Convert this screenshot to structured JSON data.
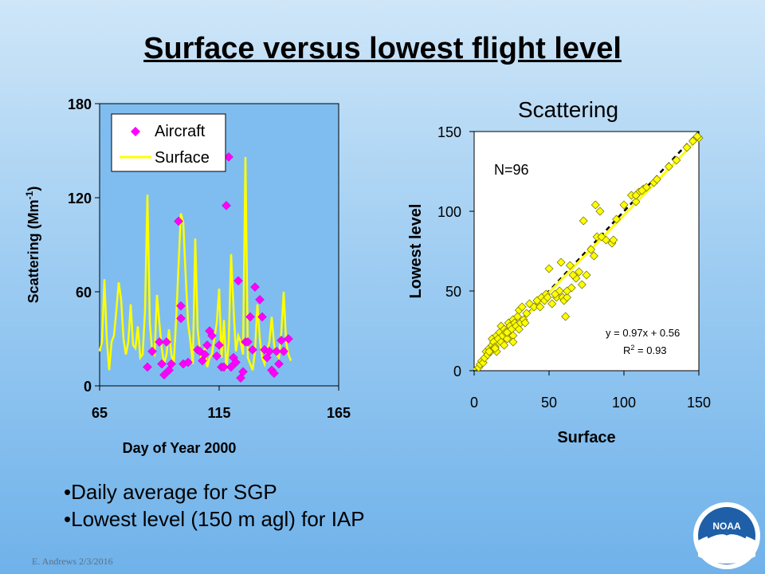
{
  "slide": {
    "title": "Surface versus lowest flight level",
    "bullets": [
      "•Daily average for SGP",
      "•Lowest level (150 m agl) for IAP"
    ],
    "footer": "E. Andrews   2/3/2016",
    "logo_text": "NOAA"
  },
  "chart_data": [
    {
      "type": "line",
      "title": "",
      "xlabel": "Day of Year 2000",
      "ylabel": "Scattering (Mm-1)",
      "xlim": [
        65,
        165
      ],
      "ylim": [
        0,
        180
      ],
      "xticks": [
        65,
        115,
        165
      ],
      "yticks": [
        0,
        60,
        120,
        180
      ],
      "legend": "top-left",
      "series": [
        {
          "name": "Aircraft",
          "kind": "scatter",
          "marker": "diamond",
          "color": "#ff00ff",
          "x": [
            85,
            87,
            90,
            91,
            92,
            93,
            94,
            95,
            98,
            99,
            99,
            100,
            102,
            106,
            107,
            108,
            109,
            110,
            111,
            112,
            114,
            115,
            116,
            117,
            118,
            119,
            120,
            121,
            122,
            123,
            124,
            125,
            126,
            127,
            128,
            129,
            130,
            132,
            133,
            134,
            135,
            136,
            137,
            138,
            139,
            140,
            141,
            142,
            144
          ],
          "y": [
            12,
            22,
            28,
            14,
            7,
            28,
            10,
            14,
            105,
            43,
            51,
            14,
            15,
            23,
            22,
            16,
            20,
            26,
            35,
            32,
            19,
            26,
            12,
            12,
            115,
            146,
            12,
            18,
            15,
            67,
            5,
            9,
            28,
            28,
            44,
            23,
            63,
            55,
            44,
            23,
            18,
            22,
            10,
            8,
            22,
            14,
            29,
            22,
            30
          ]
        },
        {
          "name": "Surface",
          "kind": "line",
          "color": "#ffff00",
          "x": [
            65,
            66,
            67,
            68,
            69,
            70,
            71,
            72,
            73,
            74,
            75,
            76,
            77,
            78,
            79,
            80,
            81,
            82,
            83,
            84,
            85,
            86,
            87,
            88,
            89,
            90,
            91,
            92,
            93,
            94,
            95,
            96,
            97,
            98,
            99,
            100,
            101,
            102,
            103,
            104,
            105,
            106,
            107,
            108,
            109,
            110,
            111,
            112,
            113,
            114,
            115,
            116,
            117,
            118,
            119,
            120,
            121,
            122,
            123,
            124,
            125,
            126,
            127,
            128,
            129,
            130,
            131,
            132,
            133,
            134,
            135,
            136,
            137,
            138,
            139,
            140,
            141,
            142,
            143,
            144,
            145
          ],
          "y": [
            22,
            28,
            68,
            30,
            10,
            28,
            32,
            48,
            66,
            55,
            30,
            20,
            28,
            52,
            26,
            24,
            38,
            18,
            20,
            48,
            122,
            40,
            22,
            20,
            58,
            40,
            24,
            14,
            20,
            36,
            20,
            14,
            42,
            76,
            110,
            104,
            70,
            40,
            28,
            14,
            94,
            36,
            22,
            14,
            24,
            12,
            18,
            20,
            30,
            40,
            62,
            18,
            42,
            10,
            28,
            84,
            50,
            22,
            32,
            28,
            20,
            146,
            18,
            14,
            10,
            22,
            52,
            30,
            18,
            14,
            22,
            28,
            44,
            26,
            20,
            18,
            34,
            60,
            28,
            20,
            16
          ]
        }
      ]
    },
    {
      "type": "scatter",
      "title": "Scattering",
      "xlabel": "Surface",
      "ylabel": "Lowest level",
      "xlim": [
        0,
        150
      ],
      "ylim": [
        0,
        150
      ],
      "xticks": [
        0,
        50,
        100,
        150
      ],
      "yticks": [
        0,
        50,
        100,
        150
      ],
      "annotations": [
        "N=96",
        "y = 0.97x + 0.56",
        "R2 = 0.93"
      ],
      "series": [
        {
          "name": "",
          "kind": "scatter",
          "marker": "diamond",
          "color": "#ffff00",
          "x": [
            3,
            4,
            5,
            6,
            7,
            8,
            9,
            10,
            11,
            12,
            12,
            13,
            14,
            15,
            15,
            16,
            17,
            18,
            18,
            19,
            20,
            20,
            21,
            22,
            23,
            24,
            25,
            26,
            26,
            27,
            28,
            29,
            30,
            30,
            31,
            32,
            33,
            35,
            37,
            40,
            42,
            45,
            47,
            48,
            50,
            52,
            55,
            57,
            58,
            59,
            60,
            61,
            62,
            64,
            65,
            68,
            70,
            72,
            75,
            78,
            80,
            82,
            84,
            88,
            92,
            95,
            100,
            105,
            108,
            110,
            113,
            115,
            120,
            135,
            150,
            10,
            14,
            22,
            26,
            34,
            44,
            49,
            54,
            62,
            66,
            73,
            81,
            85,
            93,
            108,
            112,
            122,
            130,
            142,
            146,
            149
          ],
          "y": [
            2,
            4,
            6,
            5,
            8,
            12,
            10,
            14,
            12,
            16,
            20,
            18,
            15,
            22,
            12,
            20,
            24,
            18,
            28,
            22,
            26,
            16,
            24,
            20,
            30,
            28,
            26,
            32,
            22,
            30,
            28,
            34,
            26,
            38,
            30,
            40,
            32,
            36,
            42,
            40,
            44,
            46,
            44,
            48,
            64,
            42,
            46,
            50,
            68,
            46,
            44,
            34,
            46,
            66,
            52,
            58,
            62,
            54,
            60,
            76,
            72,
            84,
            100,
            82,
            80,
            95,
            104,
            110,
            106,
            112,
            114,
            115,
            118,
            132,
            146,
            12,
            14,
            24,
            18,
            30,
            40,
            46,
            48,
            50,
            60,
            94,
            104,
            84,
            82,
            110,
            113,
            120,
            128,
            140,
            144,
            147
          ]
        }
      ]
    }
  ]
}
